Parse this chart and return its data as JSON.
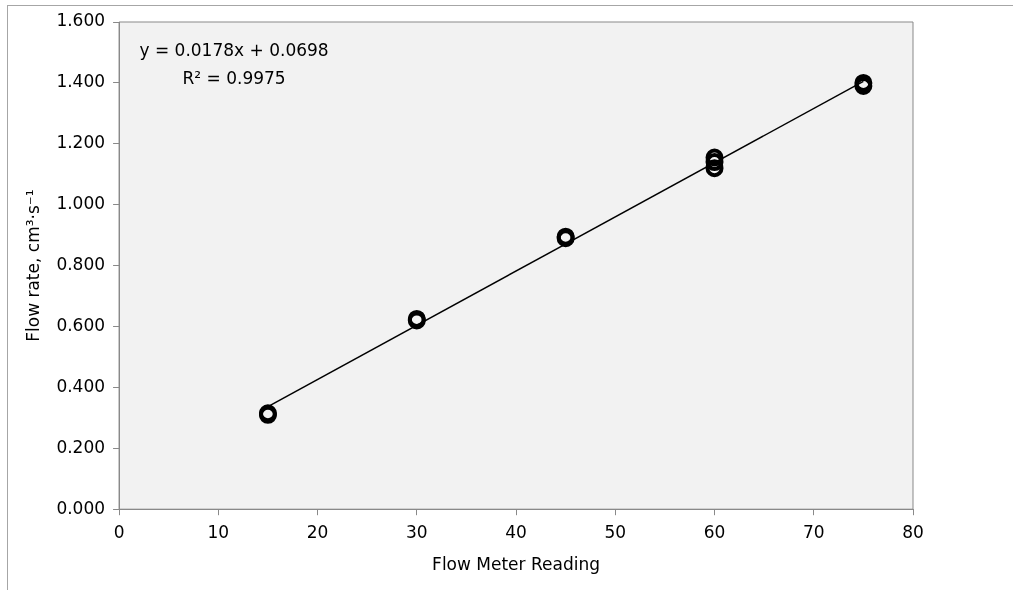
{
  "chart_data": {
    "type": "scatter",
    "xlabel": "Flow Meter Reading",
    "ylabel": "Flow rate, cm³·s⁻¹",
    "annotations": [
      "y = 0.0178x + 0.0698",
      "R² = 0.9975"
    ],
    "xlim": [
      0,
      80
    ],
    "xticks": [
      0,
      10,
      20,
      30,
      40,
      50,
      60,
      70,
      80
    ],
    "ylim": [
      0,
      1.6
    ],
    "yticks": [
      {
        "value": 0,
        "label": "0.000"
      },
      {
        "value": 0.2,
        "label": "0.200"
      },
      {
        "value": 0.4,
        "label": "0.400"
      },
      {
        "value": 0.6,
        "label": "0.600"
      },
      {
        "value": 0.8,
        "label": "0.800"
      },
      {
        "value": 1.0,
        "label": "1.000"
      },
      {
        "value": 1.2,
        "label": "1.200"
      },
      {
        "value": 1.4,
        "label": "1.400"
      },
      {
        "value": 1.6,
        "label": "1.600"
      }
    ],
    "grid": false,
    "legend": false,
    "marker": "circle",
    "series": [
      {
        "color": "#000000",
        "x": [
          15,
          15,
          30,
          30,
          45,
          45,
          60,
          60,
          60,
          75,
          75
        ],
        "values": [
          0.31,
          0.315,
          0.62,
          0.625,
          0.89,
          0.895,
          1.12,
          1.14,
          1.155,
          1.39,
          1.4
        ]
      },
      {
        "type": "line",
        "color": "#000000",
        "marker": "none",
        "x": [
          15,
          75
        ],
        "values": [
          0.337,
          1.405
        ]
      }
    ]
  }
}
